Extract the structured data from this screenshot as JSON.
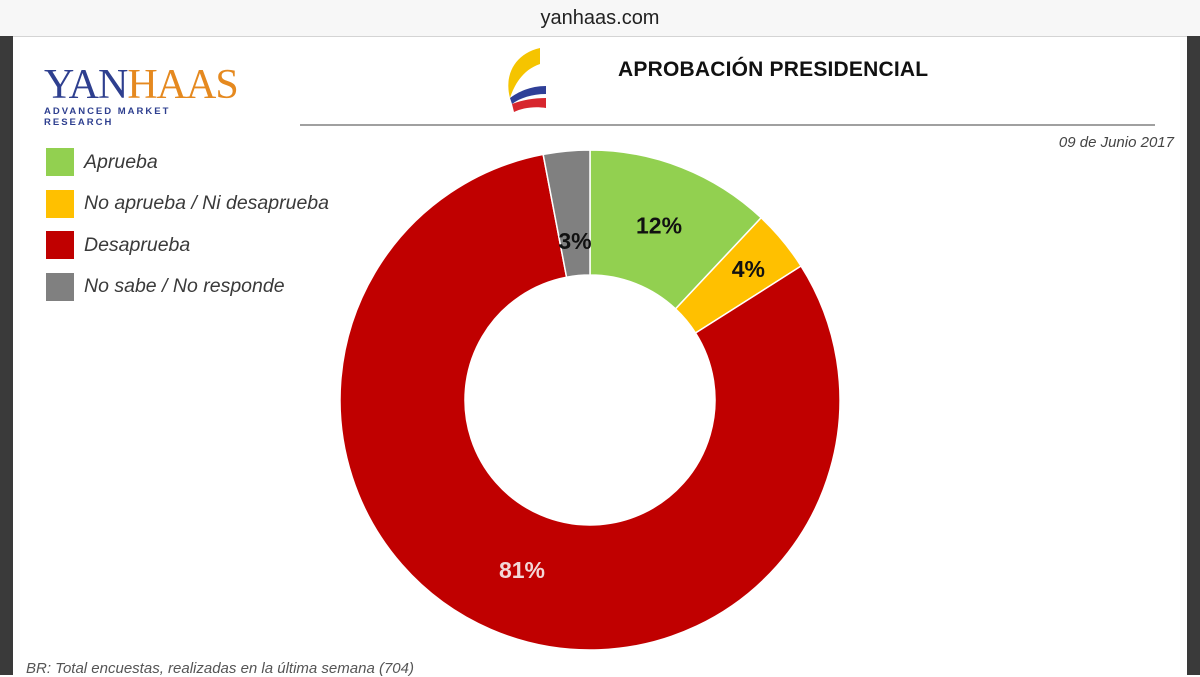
{
  "browser": {
    "url": "yanhaas.com"
  },
  "logo": {
    "word_part1": "YAN",
    "word_part2": "HAAS",
    "tagline": "ADVANCED MARKET RESEARCH"
  },
  "header": {
    "title": "APROBACIÓN PRESIDENCIAL",
    "date": "09 de Junio 2017"
  },
  "legend": [
    {
      "label": "Aprueba",
      "color": "#92d050"
    },
    {
      "label": "No aprueba / Ni desaprueba",
      "color": "#ffc000"
    },
    {
      "label": "Desaprueba",
      "color": "#c00000"
    },
    {
      "label": "No sabe /  No responde",
      "color": "#808080"
    }
  ],
  "chart_data": {
    "type": "pie",
    "variant": "donut",
    "categories": [
      "Aprueba",
      "No aprueba / Ni desaprueba",
      "Desaprueba",
      "No sabe /  No responde"
    ],
    "values": [
      12,
      4,
      81,
      3
    ],
    "data_labels": [
      "12%",
      "4%",
      "81%",
      "3%"
    ],
    "colors": [
      "#92d050",
      "#ffc000",
      "#c00000",
      "#808080"
    ],
    "label_colors": [
      "#111111",
      "#111111",
      "#f2d7d7",
      "#111111"
    ],
    "title": "APROBACIÓN PRESIDENCIAL",
    "legend_position": "top-left"
  },
  "footnote": "BR: Total encuestas, realizadas en la última semana (704)"
}
